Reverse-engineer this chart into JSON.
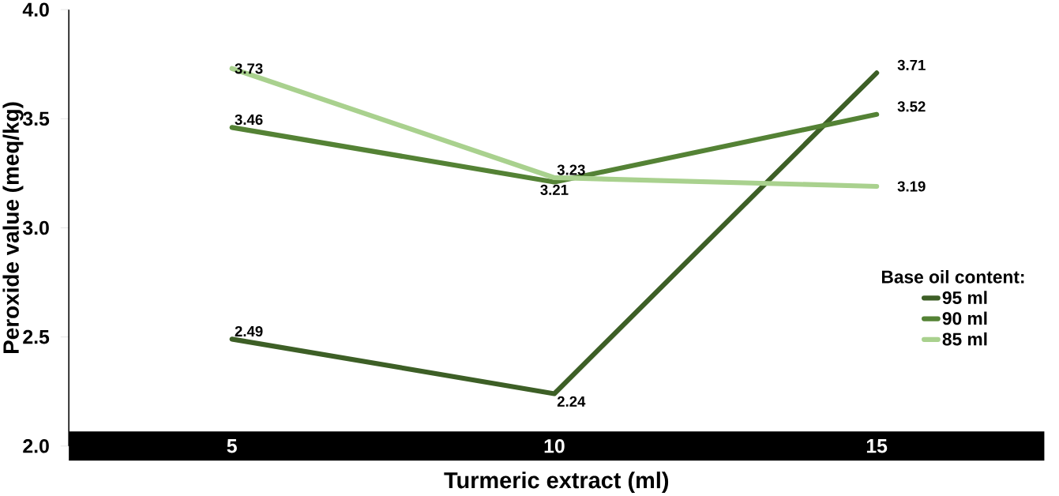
{
  "chart_data": {
    "type": "line",
    "xlabel": "Turmeric extract (ml)",
    "ylabel": "Peroxide value  (meq/kg)",
    "legend_title": "Base oil content:",
    "categories": [
      "5",
      "10",
      "15"
    ],
    "series": [
      {
        "name": "95 ml",
        "color": "#3d5f26",
        "values": [
          2.49,
          2.24,
          3.71
        ]
      },
      {
        "name": "90 ml",
        "color": "#548235",
        "values": [
          3.46,
          3.21,
          3.52
        ]
      },
      {
        "name": "85 ml",
        "color": "#a9d18e",
        "values": [
          3.73,
          3.23,
          3.19
        ]
      }
    ],
    "ylim": [
      2.0,
      4.0
    ],
    "yticks": [
      {
        "value": 2.0,
        "label": "2.0"
      },
      {
        "value": 2.5,
        "label": "2.5"
      },
      {
        "value": 3.0,
        "label": "3.0"
      },
      {
        "value": 3.5,
        "label": "3.5"
      },
      {
        "value": 4.0,
        "label": "4.0"
      }
    ],
    "data_labels": true,
    "grid": false,
    "legend": "right",
    "marker": "none",
    "line_style": "solid"
  }
}
